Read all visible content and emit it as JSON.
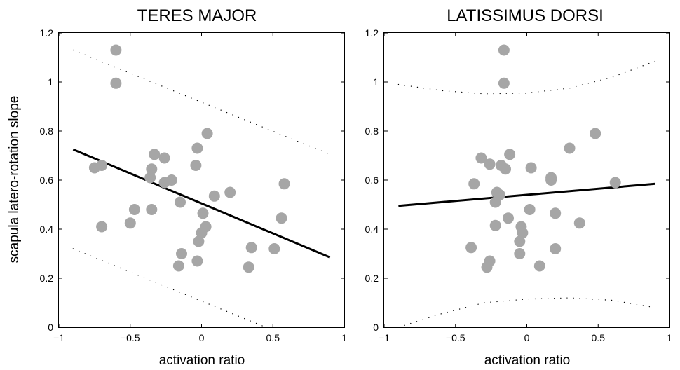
{
  "chart_data": [
    {
      "type": "scatter",
      "title": "TERES MAJOR",
      "xlabel": "activation ratio",
      "ylabel": "scapula latero-rotation slope",
      "xlim": [
        -1,
        1
      ],
      "ylim": [
        0,
        1.2
      ],
      "xticks": [
        -1,
        -0.5,
        0,
        0.5,
        1
      ],
      "xtick_labels": [
        "−1",
        "−0.5",
        "0",
        "0.5",
        "1"
      ],
      "yticks": [
        0,
        0.2,
        0.4,
        0.6,
        0.8,
        1,
        1.2
      ],
      "ytick_labels": [
        "0",
        "0.2",
        "0.4",
        "0.6",
        "0.8",
        "1",
        "1.2"
      ],
      "grid": false,
      "points": [
        {
          "x": -0.6,
          "y": 1.13
        },
        {
          "x": -0.6,
          "y": 0.995
        },
        {
          "x": -0.75,
          "y": 0.65
        },
        {
          "x": -0.7,
          "y": 0.66
        },
        {
          "x": -0.7,
          "y": 0.41
        },
        {
          "x": -0.5,
          "y": 0.425
        },
        {
          "x": -0.47,
          "y": 0.48
        },
        {
          "x": -0.35,
          "y": 0.48
        },
        {
          "x": -0.35,
          "y": 0.645
        },
        {
          "x": -0.36,
          "y": 0.61
        },
        {
          "x": -0.33,
          "y": 0.705
        },
        {
          "x": -0.26,
          "y": 0.69
        },
        {
          "x": -0.26,
          "y": 0.59
        },
        {
          "x": -0.21,
          "y": 0.6
        },
        {
          "x": -0.15,
          "y": 0.51
        },
        {
          "x": -0.14,
          "y": 0.3
        },
        {
          "x": -0.16,
          "y": 0.25
        },
        {
          "x": -0.04,
          "y": 0.66
        },
        {
          "x": -0.03,
          "y": 0.73
        },
        {
          "x": -0.02,
          "y": 0.35
        },
        {
          "x": -0.03,
          "y": 0.27
        },
        {
          "x": 0.01,
          "y": 0.465
        },
        {
          "x": 0.0,
          "y": 0.385
        },
        {
          "x": 0.03,
          "y": 0.41
        },
        {
          "x": 0.04,
          "y": 0.79
        },
        {
          "x": 0.09,
          "y": 0.535
        },
        {
          "x": 0.2,
          "y": 0.55
        },
        {
          "x": 0.33,
          "y": 0.245
        },
        {
          "x": 0.35,
          "y": 0.325
        },
        {
          "x": 0.51,
          "y": 0.32
        },
        {
          "x": 0.56,
          "y": 0.445
        },
        {
          "x": 0.58,
          "y": 0.585
        }
      ],
      "fit_line": [
        [
          -0.9,
          0.725
        ],
        [
          0.9,
          0.285
        ]
      ],
      "ci_upper": [
        [
          -0.9,
          1.13
        ],
        [
          0.9,
          0.705
        ]
      ],
      "ci_lower": [
        [
          -0.9,
          0.32
        ],
        [
          0.45,
          0.0
        ]
      ]
    },
    {
      "type": "scatter",
      "title": "LATISSIMUS DORSI",
      "xlabel": "activation ratio",
      "ylabel": "",
      "xlim": [
        -1,
        1
      ],
      "ylim": [
        0,
        1.2
      ],
      "xticks": [
        -1,
        -0.5,
        0,
        0.5,
        1
      ],
      "xtick_labels": [
        "−1",
        "−0.5",
        "0",
        "0.5",
        "1"
      ],
      "yticks": [
        0,
        0.2,
        0.4,
        0.6,
        0.8,
        1,
        1.2
      ],
      "ytick_labels": [
        "0",
        "0.2",
        "0.4",
        "0.6",
        "0.8",
        "1",
        "1.2"
      ],
      "grid": false,
      "points": [
        {
          "x": -0.16,
          "y": 1.13
        },
        {
          "x": -0.16,
          "y": 0.995
        },
        {
          "x": -0.37,
          "y": 0.585
        },
        {
          "x": -0.32,
          "y": 0.69
        },
        {
          "x": -0.26,
          "y": 0.665
        },
        {
          "x": -0.18,
          "y": 0.66
        },
        {
          "x": -0.15,
          "y": 0.645
        },
        {
          "x": -0.12,
          "y": 0.705
        },
        {
          "x": -0.21,
          "y": 0.55
        },
        {
          "x": -0.19,
          "y": 0.54
        },
        {
          "x": -0.22,
          "y": 0.51
        },
        {
          "x": -0.22,
          "y": 0.415
        },
        {
          "x": -0.13,
          "y": 0.445
        },
        {
          "x": 0.03,
          "y": 0.65
        },
        {
          "x": 0.02,
          "y": 0.48
        },
        {
          "x": -0.04,
          "y": 0.41
        },
        {
          "x": -0.03,
          "y": 0.385
        },
        {
          "x": -0.05,
          "y": 0.35
        },
        {
          "x": -0.05,
          "y": 0.3
        },
        {
          "x": -0.39,
          "y": 0.325
        },
        {
          "x": -0.26,
          "y": 0.27
        },
        {
          "x": -0.28,
          "y": 0.245
        },
        {
          "x": 0.09,
          "y": 0.25
        },
        {
          "x": 0.17,
          "y": 0.61
        },
        {
          "x": 0.17,
          "y": 0.6
        },
        {
          "x": 0.2,
          "y": 0.465
        },
        {
          "x": 0.2,
          "y": 0.32
        },
        {
          "x": 0.3,
          "y": 0.73
        },
        {
          "x": 0.37,
          "y": 0.425
        },
        {
          "x": 0.48,
          "y": 0.79
        },
        {
          "x": 0.62,
          "y": 0.59
        }
      ],
      "fit_line": [
        [
          -0.9,
          0.495
        ],
        [
          0.9,
          0.585
        ]
      ],
      "ci_upper": [
        [
          -0.9,
          0.99
        ],
        [
          -0.6,
          0.965
        ],
        [
          -0.3,
          0.952
        ],
        [
          0.0,
          0.955
        ],
        [
          0.3,
          0.975
        ],
        [
          0.6,
          1.02
        ],
        [
          0.9,
          1.085
        ]
      ],
      "ci_lower": [
        [
          -0.9,
          0.0
        ],
        [
          -0.6,
          0.055
        ],
        [
          -0.3,
          0.1
        ],
        [
          0.0,
          0.115
        ],
        [
          0.3,
          0.12
        ],
        [
          0.6,
          0.11
        ],
        [
          0.9,
          0.08
        ]
      ]
    }
  ]
}
